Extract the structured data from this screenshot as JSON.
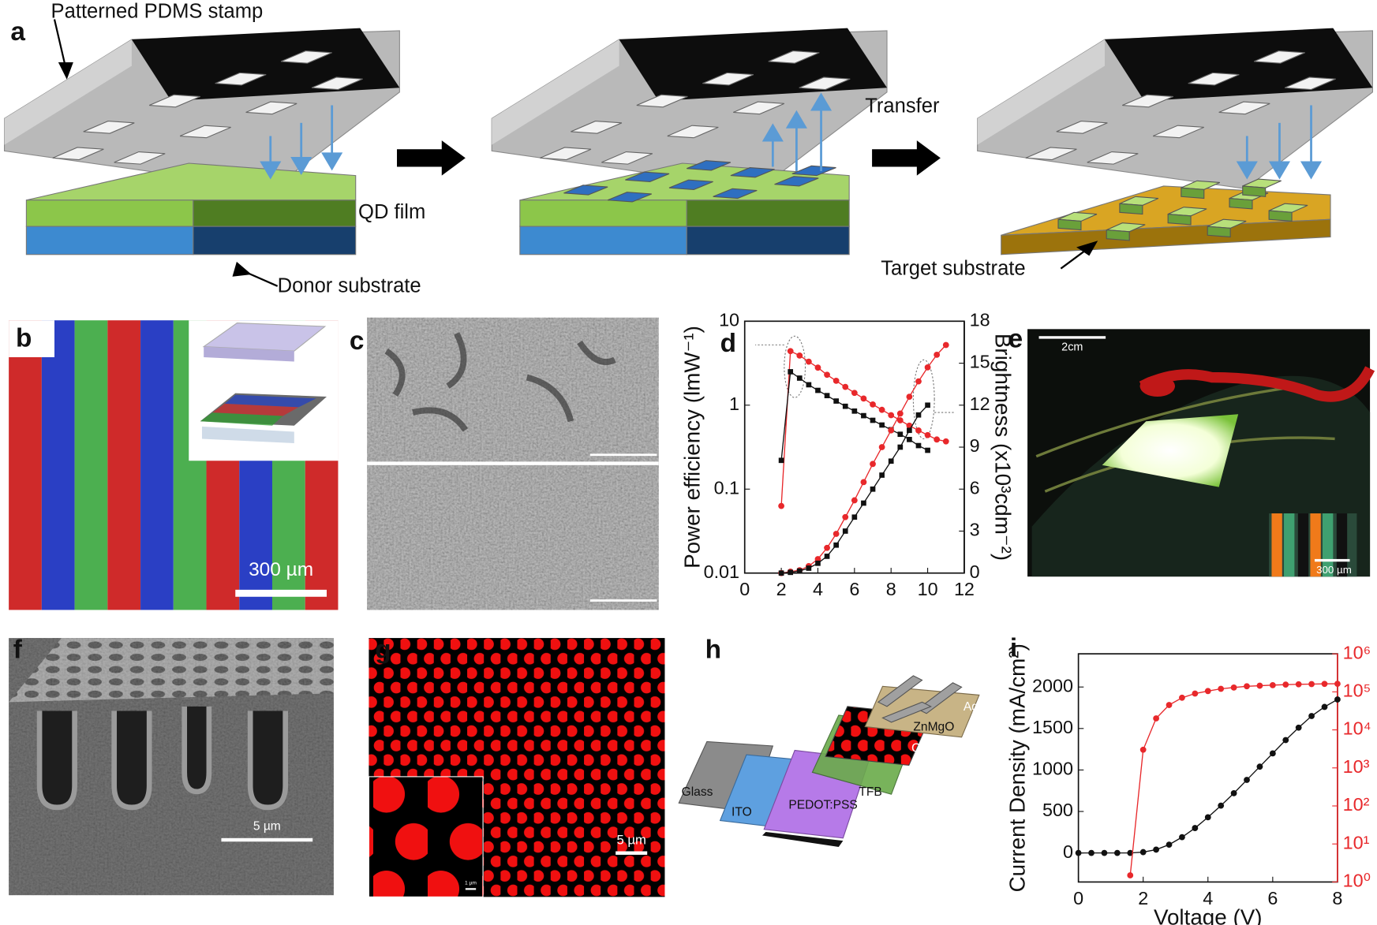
{
  "panel_labels": [
    "a",
    "b",
    "c",
    "d",
    "e",
    "f",
    "g",
    "h",
    "i"
  ],
  "panel_a": {
    "stamp": "Patterned PDMS stamp",
    "film": "QD film",
    "donor": "Donor substrate",
    "transfer": "Transfer",
    "target": "Target substrate"
  },
  "panel_b": {
    "scale_bar": "300 µm"
  },
  "panel_e": {
    "scale_bar": "2cm",
    "inset_scale_bar": "300 µm"
  },
  "panel_f": {
    "scale_bar": "5 µm"
  },
  "panel_g": {
    "scale_bar": "5 µm",
    "inset_scale_bar": "1 µm"
  },
  "panel_h": {
    "layers": [
      "Glass",
      "ITO",
      "PEDOT:PSS",
      "TFB",
      "QDs",
      "ZnMgO",
      "Ag"
    ]
  },
  "chart_data": [
    {
      "type": "line",
      "ylabel": "Power efficiency (lmW⁻¹)",
      "y2label": "Brightness (x10³cdm⁻²)",
      "xlim": [
        0,
        12
      ],
      "xticks": [
        0,
        2,
        4,
        6,
        8,
        10,
        12
      ],
      "ylim": [
        0.01,
        10
      ],
      "yticks": [
        0.01,
        0.1,
        1,
        10
      ],
      "ylog": true,
      "y2lim": [
        0,
        18
      ],
      "y2ticks": [
        0,
        3,
        6,
        9,
        12,
        15,
        18
      ],
      "series": [
        {
          "color": "#e8282b",
          "marker": "circle",
          "axis": "y",
          "x": [
            2,
            2.5,
            3,
            3.5,
            4,
            4.5,
            5,
            5.5,
            6,
            6.5,
            7,
            7.5,
            8,
            8.5,
            9,
            9.5,
            10,
            10.5,
            11
          ],
          "values": [
            0.063,
            4.4,
            3.9,
            3.3,
            2.8,
            2.3,
            1.95,
            1.65,
            1.4,
            1.2,
            1.02,
            0.88,
            0.76,
            0.66,
            0.57,
            0.5,
            0.44,
            0.39,
            0.37
          ]
        },
        {
          "color": "#111111",
          "marker": "square",
          "axis": "y",
          "x": [
            2,
            2.5,
            3,
            3.5,
            4,
            4.5,
            5,
            5.5,
            6,
            6.5,
            7,
            7.5,
            8,
            8.5,
            9,
            9.5,
            10
          ],
          "values": [
            0.22,
            2.5,
            2.1,
            1.75,
            1.5,
            1.3,
            1.12,
            0.97,
            0.85,
            0.75,
            0.66,
            0.58,
            0.51,
            0.45,
            0.39,
            0.33,
            0.29
          ]
        },
        {
          "color": "#e8282b",
          "marker": "circle",
          "axis": "y2",
          "x": [
            2,
            2.5,
            3,
            3.5,
            4,
            4.5,
            5,
            5.5,
            6,
            6.5,
            7,
            7.5,
            8,
            8.5,
            9,
            9.5,
            10,
            10.5,
            11
          ],
          "values": [
            0,
            0.1,
            0.2,
            0.5,
            1,
            1.8,
            2.8,
            4,
            5.2,
            6.5,
            7.8,
            9,
            10.2,
            11.4,
            12.6,
            13.7,
            14.7,
            15.6,
            16.3
          ]
        },
        {
          "color": "#111111",
          "marker": "square",
          "axis": "y2",
          "x": [
            2,
            2.5,
            3,
            3.5,
            4,
            4.5,
            5,
            5.5,
            6,
            6.5,
            7,
            7.5,
            8,
            8.5,
            9,
            9.5,
            10
          ],
          "values": [
            0,
            0.05,
            0.15,
            0.35,
            0.7,
            1.2,
            2,
            3,
            4,
            5,
            6,
            7,
            8,
            9,
            10.2,
            11.3,
            12
          ]
        }
      ]
    },
    {
      "type": "line",
      "xlabel": "Voltage (V)",
      "ylabel": "Current Density (mA/cm²)",
      "xlim": [
        0,
        8
      ],
      "xticks": [
        0,
        2,
        4,
        6,
        8
      ],
      "ylim": [
        -350,
        2400
      ],
      "yticks": [
        0,
        500,
        1000,
        1500,
        2000
      ],
      "y2lim": [
        1,
        1000000
      ],
      "y2log": true,
      "y2color": "#e8282b",
      "y2ticks": [
        {
          "value": 1,
          "label": "10⁰"
        },
        {
          "value": 10,
          "label": "10¹"
        },
        {
          "value": 100,
          "label": "10²"
        },
        {
          "value": 1000,
          "label": "10³"
        },
        {
          "value": 10000,
          "label": "10⁴"
        },
        {
          "value": 100000,
          "label": "10⁵"
        },
        {
          "value": 1000000,
          "label": "10⁶"
        }
      ],
      "series": [
        {
          "color": "#111111",
          "marker": "circle",
          "axis": "y",
          "x": [
            0,
            0.4,
            0.8,
            1.2,
            1.6,
            2,
            2.4,
            2.8,
            3.2,
            3.6,
            4,
            4.4,
            4.8,
            5.2,
            5.6,
            6,
            6.4,
            6.8,
            7.2,
            7.6,
            8
          ],
          "values": [
            0,
            0,
            0,
            0,
            0,
            10,
            40,
            100,
            190,
            300,
            430,
            570,
            720,
            880,
            1040,
            1200,
            1360,
            1510,
            1650,
            1760,
            1850
          ]
        },
        {
          "color": "#e8282b",
          "marker": "circle",
          "axis": "y2",
          "x": [
            1.6,
            2,
            2.4,
            2.8,
            3.2,
            3.6,
            4,
            4.4,
            4.8,
            5.2,
            5.6,
            6,
            6.4,
            6.8,
            7.2,
            7.6,
            8
          ],
          "values": [
            1.5,
            3000,
            20000,
            45000,
            70000,
            90000,
            105000,
            120000,
            130000,
            140000,
            145000,
            150000,
            155000,
            158000,
            160000,
            162000,
            163000
          ]
        }
      ]
    }
  ]
}
